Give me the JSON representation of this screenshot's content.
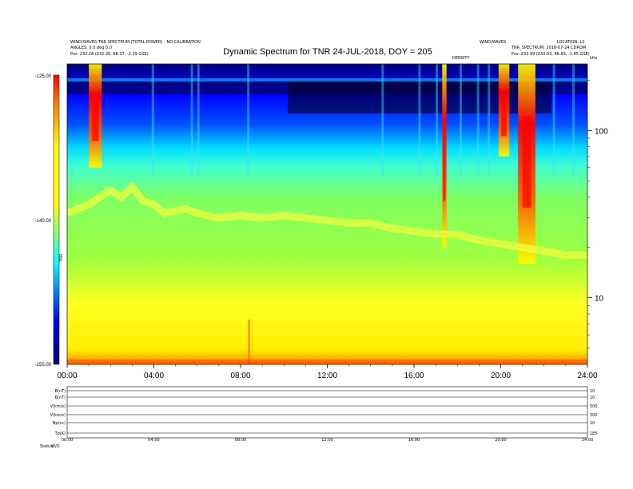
{
  "header": {
    "left_line1": "WIND/WAVES TNR SPECTRUM (TOTAL POWER) - NO CALIBRATION",
    "left_line2": "ANGLES: 0.0 deg 0.0",
    "left_line3": "Pos: 232.28 (232.26, 88.37, -2.29 GSE)",
    "right_line1": "WIND/WAVES",
    "right_line1b": "LOCATION: L1",
    "right_line2": "TNR_SPECTRUM: 2018-07-24 CDROM",
    "right_line3": "Pos: 233.99 (233.93, 86.83, -1.85 GSE)",
    "right_small": "kHz",
    "mid_small": "DENSITY"
  },
  "chart_data": {
    "type": "heatmap",
    "title": "Dynamic Spectrum for TNR 24-JUL-2018, DOY = 205",
    "x_ticks": [
      "00:00",
      "04:00",
      "08:00",
      "12:00",
      "16:00",
      "20:00",
      "24:00"
    ],
    "xlim_hours": [
      0,
      24
    ],
    "y_ticks_right": [
      "100",
      "10"
    ],
    "y_scale": "log",
    "ylim": [
      4,
      250
    ],
    "ylabel_right": "kHz",
    "colorbar": {
      "ticks": [
        "-125.00",
        "-140.00",
        "-155.00"
      ],
      "range": [
        -155,
        -125
      ],
      "label": "TNR",
      "colors": [
        "#000080",
        "#0000ff",
        "#00ffff",
        "#ffff00",
        "#ff0000"
      ]
    },
    "plasma_line_khz": [
      [
        0.0,
        32
      ],
      [
        0.5,
        34
      ],
      [
        1.0,
        36
      ],
      [
        1.5,
        40
      ],
      [
        2.0,
        44
      ],
      [
        2.5,
        40
      ],
      [
        3.0,
        46
      ],
      [
        3.5,
        38
      ],
      [
        4.0,
        36
      ],
      [
        4.5,
        32
      ],
      [
        5.0,
        33
      ],
      [
        5.5,
        34
      ],
      [
        6.0,
        32
      ],
      [
        7.0,
        30
      ],
      [
        8.0,
        31
      ],
      [
        9.0,
        30
      ],
      [
        10.0,
        31
      ],
      [
        11.0,
        30
      ],
      [
        12.0,
        29
      ],
      [
        13.0,
        28
      ],
      [
        14.0,
        28
      ],
      [
        15.0,
        26
      ],
      [
        16.0,
        25
      ],
      [
        17.0,
        24
      ],
      [
        18.0,
        24
      ],
      [
        19.0,
        22
      ],
      [
        20.0,
        21
      ],
      [
        21.0,
        20
      ],
      [
        22.0,
        19
      ],
      [
        23.0,
        18
      ],
      [
        24.0,
        18
      ]
    ],
    "radio_bursts": [
      {
        "start_h": 1.0,
        "end_h": 1.6,
        "f_low_khz": 60,
        "peak_khz": 150
      },
      {
        "start_h": 17.3,
        "end_h": 17.5,
        "f_low_khz": 20,
        "peak_khz": 100
      },
      {
        "start_h": 19.9,
        "end_h": 20.4,
        "f_low_khz": 70,
        "peak_khz": 140
      },
      {
        "start_h": 20.8,
        "end_h": 21.6,
        "f_low_khz": 16,
        "peak_khz": 110
      }
    ]
  },
  "bottom_panel": {
    "rows": [
      {
        "left": "B(nT)",
        "right": "10"
      },
      {
        "left": "B(nT)",
        "right": "10"
      },
      {
        "left": "V(km/s)",
        "right": "500"
      },
      {
        "left": "V(km/s)",
        "right": "500"
      },
      {
        "left": "Np(cc)",
        "right": "10"
      },
      {
        "left": "Tp(K)",
        "right": "1E5"
      }
    ],
    "x_ticks": [
      "00:00",
      "04:00",
      "08:00",
      "12:00",
      "16:00",
      "20:00",
      "24:00"
    ],
    "footer_left": "Status:",
    "footer_left2": "W/O"
  }
}
